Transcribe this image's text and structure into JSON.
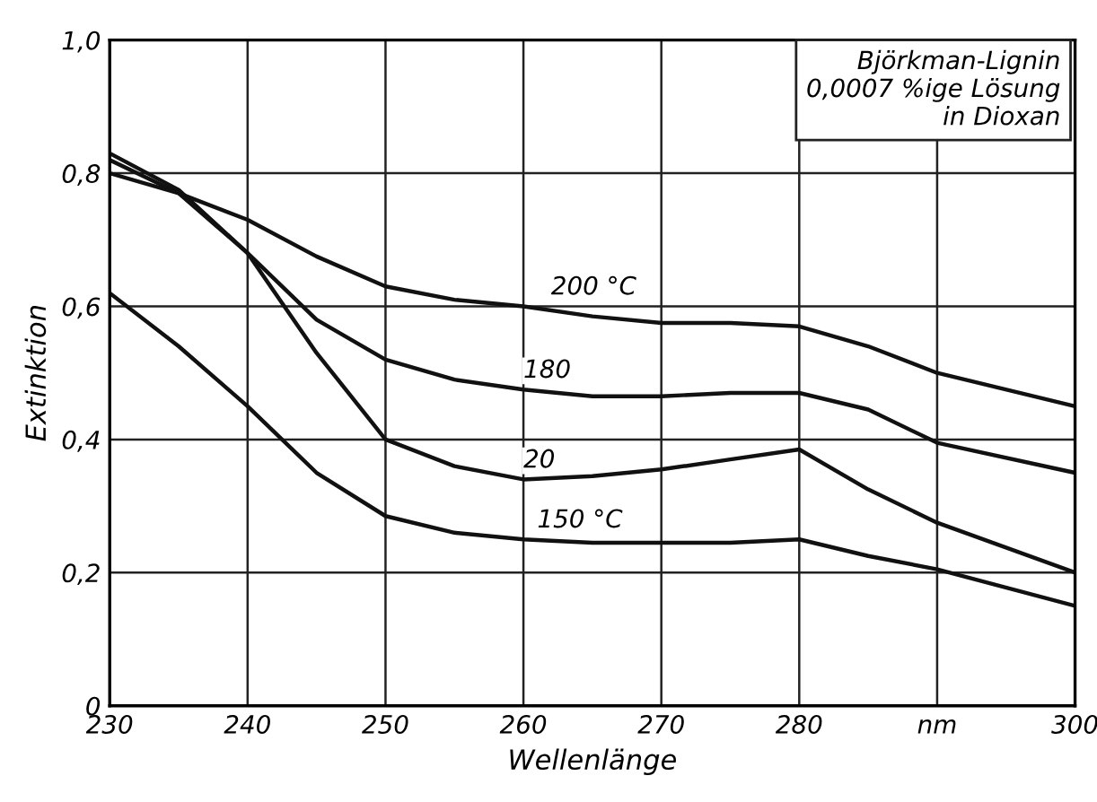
{
  "chart_data": {
    "type": "line",
    "xlabel": "Wellenlänge",
    "ylabel": "Extinktion",
    "x": [
      230,
      235,
      240,
      245,
      250,
      255,
      260,
      265,
      270,
      275,
      280,
      285,
      290,
      300
    ],
    "series": [
      {
        "color": "#111111",
        "values": [
          0.8,
          0.77,
          0.73,
          0.675,
          0.63,
          0.61,
          0.6,
          0.585,
          0.575,
          0.575,
          0.57,
          0.54,
          0.5,
          0.45
        ]
      },
      {
        "color": "#111111",
        "values": [
          0.83,
          0.775,
          0.68,
          0.58,
          0.52,
          0.49,
          0.475,
          0.465,
          0.465,
          0.47,
          0.47,
          0.445,
          0.395,
          0.35
        ]
      },
      {
        "color": "#111111",
        "values": [
          0.82,
          0.77,
          0.68,
          0.53,
          0.4,
          0.36,
          0.34,
          0.345,
          0.355,
          0.37,
          0.385,
          0.325,
          0.275,
          0.2
        ]
      },
      {
        "color": "#111111",
        "values": [
          0.62,
          0.54,
          0.45,
          0.35,
          0.285,
          0.26,
          0.25,
          0.245,
          0.245,
          0.245,
          0.25,
          0.225,
          0.205,
          0.15
        ]
      }
    ],
    "xlim": [
      230,
      300
    ],
    "ylim": [
      0,
      1.0
    ],
    "xticks": [
      230,
      240,
      250,
      260,
      270,
      280,
      {
        "value": 290,
        "label": "nm"
      },
      300
    ],
    "yticks": [
      {
        "value": 0,
        "label": "0"
      },
      {
        "value": 0.2,
        "label": "0,2"
      },
      {
        "value": 0.4,
        "label": "0,4"
      },
      {
        "value": 0.6,
        "label": "0,6"
      },
      {
        "value": 0.8,
        "label": "0,8"
      },
      {
        "value": 1.0,
        "label": "1,0"
      }
    ],
    "grid": true,
    "marker": "none",
    "line_style": "solid",
    "annotations": [
      {
        "text": "200 °C",
        "x": 262,
        "y": 0.61
      },
      {
        "text": "180",
        "x": 260,
        "y": 0.485
      },
      {
        "text": "20",
        "x": 260,
        "y": 0.35
      },
      {
        "text": "150 °C",
        "x": 261,
        "y": 0.26
      },
      "Björkman-Lignin\n0,0007 %ige Lösung\nin Dioxan"
    ]
  }
}
